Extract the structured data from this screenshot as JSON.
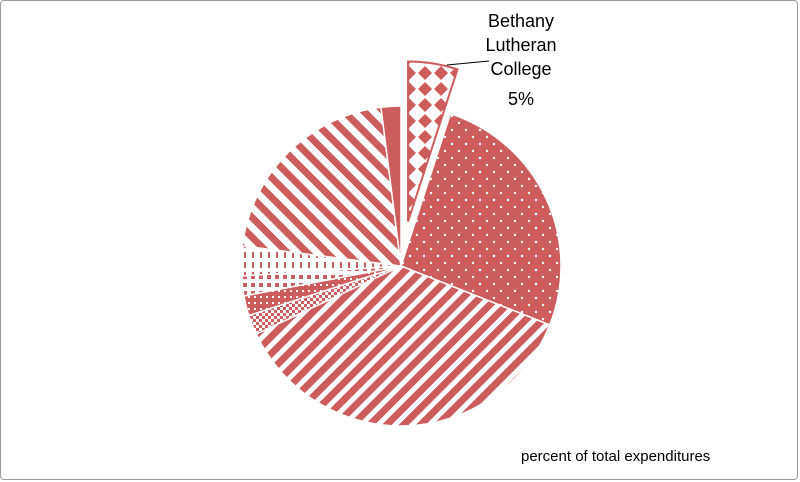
{
  "chart_data": {
    "type": "pie",
    "categories": [
      "Bethany Lutheran College",
      null,
      null,
      null,
      null,
      null,
      null,
      null,
      null
    ],
    "values": [
      5,
      26,
      37,
      2,
      2,
      2,
      3,
      21,
      2
    ],
    "value_labels": [
      "5%",
      null,
      null,
      null,
      null,
      null,
      null,
      null,
      null
    ],
    "color": "#cd5c5c",
    "exploded": [
      0
    ],
    "annotation": "percent of total expenditures"
  }
}
